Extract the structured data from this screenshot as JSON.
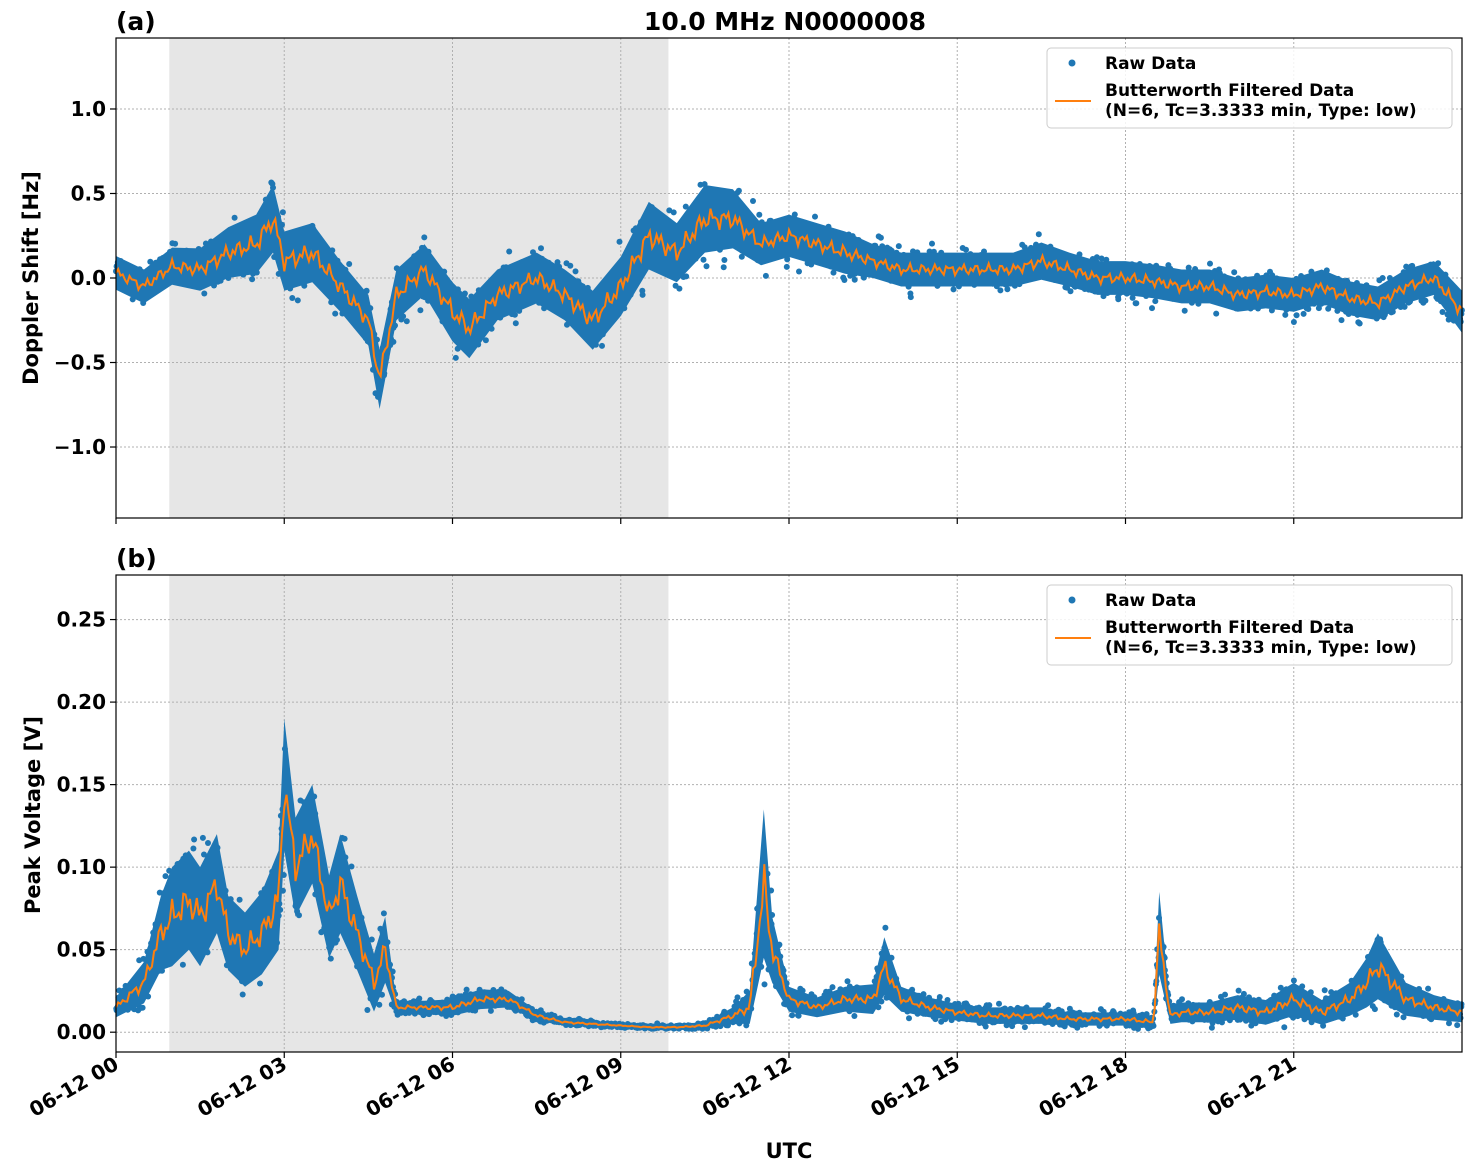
{
  "title": "10.0 MHz N0000008",
  "colors": {
    "raw": "#1f77b4",
    "filtered": "#ff7f0e",
    "night_shade": "#e6e6e6",
    "grid": "#b0b0b0"
  },
  "legend": {
    "raw_label": "Raw Data",
    "filtered_label_line1": "Butterworth Filtered Data",
    "filtered_label_line2": "(N=6, Tc=3.3333 min, Type: low)"
  },
  "xaxis": {
    "label": "UTC",
    "range_hours": [
      0,
      24
    ],
    "ticks": [
      {
        "hour": 0,
        "label": "06-12 00"
      },
      {
        "hour": 3,
        "label": "06-12 03"
      },
      {
        "hour": 6,
        "label": "06-12 06"
      },
      {
        "hour": 9,
        "label": "06-12 09"
      },
      {
        "hour": 12,
        "label": "06-12 12"
      },
      {
        "hour": 15,
        "label": "06-12 15"
      },
      {
        "hour": 18,
        "label": "06-12 18"
      },
      {
        "hour": 21,
        "label": "06-12 21"
      }
    ]
  },
  "chart_data": [
    {
      "type": "scatter",
      "panel": "(a)",
      "ylabel": "Doppler Shift [Hz]",
      "ylim": [
        -1.42,
        1.42
      ],
      "yticks": [
        {
          "value": 1.0,
          "label": "1.0"
        },
        {
          "value": 0.5,
          "label": "0.5"
        },
        {
          "value": 0.0,
          "label": "0.0"
        },
        {
          "value": -0.5,
          "label": "−0.5"
        },
        {
          "value": -1.0,
          "label": "−1.0"
        }
      ],
      "shaded_hours": [
        0.95,
        9.85
      ],
      "grid": true,
      "legend_position": "top-right",
      "x_hours": [
        0,
        0.5,
        1,
        1.5,
        2,
        2.5,
        2.8,
        3,
        3.5,
        4,
        4.5,
        4.7,
        5,
        5.5,
        6,
        6.3,
        6.8,
        7.5,
        8,
        8.5,
        9,
        9.5,
        10,
        10.5,
        11,
        11.5,
        12,
        12.5,
        13,
        13.5,
        14,
        14.5,
        15,
        15.5,
        16,
        16.5,
        17,
        17.5,
        18,
        18.5,
        19,
        19.5,
        20,
        20.5,
        21,
        21.5,
        22,
        22.5,
        23,
        23.5,
        24
      ],
      "series": [
        {
          "name": "Butterworth Filtered Data",
          "values": [
            0.03,
            -0.05,
            0.07,
            0.05,
            0.15,
            0.2,
            0.35,
            0.1,
            0.15,
            -0.05,
            -0.25,
            -0.6,
            -0.1,
            0.05,
            -0.2,
            -0.3,
            -0.1,
            0.0,
            -0.1,
            -0.25,
            -0.05,
            0.25,
            0.15,
            0.35,
            0.35,
            0.2,
            0.25,
            0.2,
            0.15,
            0.1,
            0.05,
            0.05,
            0.05,
            0.05,
            0.05,
            0.1,
            0.05,
            0.0,
            0.0,
            -0.02,
            -0.05,
            -0.05,
            -0.1,
            -0.08,
            -0.1,
            -0.05,
            -0.12,
            -0.15,
            -0.05,
            0.0,
            -0.2
          ]
        },
        {
          "name": "Raw Data",
          "values": [
            0.03,
            -0.05,
            0.07,
            0.05,
            0.15,
            0.2,
            0.35,
            0.1,
            0.15,
            -0.05,
            -0.25,
            -0.6,
            -0.1,
            0.05,
            -0.2,
            -0.3,
            -0.1,
            0.0,
            -0.1,
            -0.25,
            -0.05,
            0.25,
            0.15,
            0.35,
            0.35,
            0.2,
            0.25,
            0.2,
            0.15,
            0.1,
            0.05,
            0.05,
            0.05,
            0.05,
            0.05,
            0.1,
            0.05,
            0.0,
            0.0,
            -0.02,
            -0.05,
            -0.05,
            -0.1,
            -0.08,
            -0.1,
            -0.05,
            -0.12,
            -0.15,
            -0.05,
            0.0,
            -0.2
          ],
          "spread": [
            0.2,
            0.2,
            0.22,
            0.25,
            0.3,
            0.35,
            0.4,
            0.35,
            0.35,
            0.3,
            0.3,
            0.35,
            0.3,
            0.3,
            0.35,
            0.35,
            0.3,
            0.3,
            0.3,
            0.35,
            0.35,
            0.4,
            0.35,
            0.4,
            0.35,
            0.25,
            0.25,
            0.25,
            0.25,
            0.2,
            0.2,
            0.2,
            0.2,
            0.2,
            0.2,
            0.22,
            0.2,
            0.2,
            0.2,
            0.2,
            0.2,
            0.2,
            0.2,
            0.2,
            0.2,
            0.2,
            0.2,
            0.2,
            0.2,
            0.2,
            0.25
          ]
        }
      ]
    },
    {
      "type": "scatter",
      "panel": "(b)",
      "ylabel": "Peak Voltage [V]",
      "ylim": [
        -0.012,
        0.277
      ],
      "yticks": [
        {
          "value": 0.25,
          "label": "0.25"
        },
        {
          "value": 0.2,
          "label": "0.20"
        },
        {
          "value": 0.15,
          "label": "0.15"
        },
        {
          "value": 0.1,
          "label": "0.10"
        },
        {
          "value": 0.05,
          "label": "0.05"
        },
        {
          "value": 0.0,
          "label": "0.00"
        }
      ],
      "shaded_hours": [
        0.95,
        9.85
      ],
      "grid": true,
      "legend_position": "top-right",
      "x_hours": [
        0,
        0.5,
        0.8,
        1,
        1.3,
        1.5,
        1.8,
        2,
        2.3,
        2.6,
        2.9,
        3,
        3.2,
        3.5,
        3.8,
        4,
        4.3,
        4.6,
        4.8,
        5,
        5.5,
        6,
        6.5,
        7,
        7.5,
        8,
        8.5,
        9,
        9.5,
        10,
        10.5,
        11,
        11.3,
        11.55,
        11.7,
        12,
        12.5,
        13,
        13.5,
        13.7,
        14,
        14.5,
        15,
        15.5,
        16,
        16.5,
        17,
        17.5,
        18,
        18.5,
        18.6,
        18.8,
        19,
        19.5,
        20,
        20.5,
        21,
        21.5,
        22,
        22.3,
        22.5,
        23,
        23.5,
        24
      ],
      "series": [
        {
          "name": "Butterworth Filtered Data",
          "values": [
            0.015,
            0.03,
            0.06,
            0.07,
            0.08,
            0.07,
            0.09,
            0.06,
            0.05,
            0.06,
            0.08,
            0.15,
            0.1,
            0.12,
            0.07,
            0.09,
            0.06,
            0.03,
            0.05,
            0.015,
            0.015,
            0.015,
            0.02,
            0.02,
            0.01,
            0.006,
            0.005,
            0.004,
            0.003,
            0.003,
            0.004,
            0.01,
            0.015,
            0.09,
            0.05,
            0.02,
            0.015,
            0.02,
            0.02,
            0.04,
            0.02,
            0.015,
            0.012,
            0.01,
            0.01,
            0.01,
            0.008,
            0.008,
            0.008,
            0.006,
            0.06,
            0.01,
            0.012,
            0.012,
            0.015,
            0.012,
            0.02,
            0.012,
            0.02,
            0.03,
            0.04,
            0.02,
            0.015,
            0.012
          ]
        },
        {
          "name": "Raw Data",
          "values": [
            0.015,
            0.03,
            0.06,
            0.07,
            0.08,
            0.07,
            0.09,
            0.06,
            0.05,
            0.06,
            0.08,
            0.15,
            0.1,
            0.12,
            0.07,
            0.09,
            0.06,
            0.03,
            0.05,
            0.015,
            0.015,
            0.015,
            0.02,
            0.02,
            0.01,
            0.006,
            0.005,
            0.004,
            0.003,
            0.003,
            0.004,
            0.01,
            0.015,
            0.09,
            0.05,
            0.02,
            0.015,
            0.02,
            0.02,
            0.04,
            0.02,
            0.015,
            0.012,
            0.01,
            0.01,
            0.01,
            0.008,
            0.008,
            0.008,
            0.006,
            0.06,
            0.01,
            0.012,
            0.012,
            0.015,
            0.012,
            0.02,
            0.012,
            0.02,
            0.03,
            0.04,
            0.02,
            0.015,
            0.012
          ],
          "spread": [
            0.012,
            0.025,
            0.045,
            0.06,
            0.06,
            0.06,
            0.06,
            0.045,
            0.045,
            0.05,
            0.06,
            0.08,
            0.06,
            0.06,
            0.05,
            0.06,
            0.045,
            0.035,
            0.04,
            0.008,
            0.008,
            0.01,
            0.012,
            0.01,
            0.006,
            0.004,
            0.003,
            0.002,
            0.002,
            0.002,
            0.004,
            0.01,
            0.02,
            0.09,
            0.04,
            0.015,
            0.012,
            0.015,
            0.018,
            0.035,
            0.015,
            0.012,
            0.01,
            0.01,
            0.01,
            0.01,
            0.008,
            0.008,
            0.008,
            0.008,
            0.05,
            0.01,
            0.012,
            0.012,
            0.015,
            0.015,
            0.02,
            0.015,
            0.02,
            0.03,
            0.04,
            0.02,
            0.015,
            0.012
          ]
        }
      ]
    }
  ]
}
